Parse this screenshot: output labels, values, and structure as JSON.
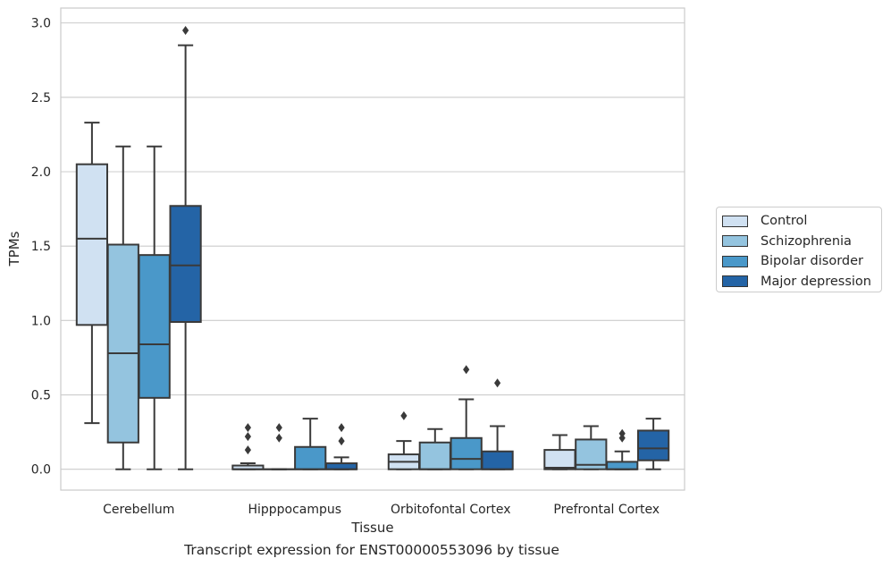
{
  "chart_data": {
    "type": "boxplot",
    "xlabel": "Tissue",
    "ylabel": "TPMs",
    "caption": "Transcript expression for ENST00000553096 by tissue",
    "ylim": [
      -0.14,
      3.1
    ],
    "yticks": [
      "0.0",
      "0.5",
      "1.0",
      "1.5",
      "2.0",
      "2.5",
      "3.0"
    ],
    "grid": "horizontal",
    "legend_position": "right",
    "categories": [
      "Cerebellum",
      "Hipppocampus",
      "Orbitofontal Cortex",
      "Prefrontal Cortex"
    ],
    "series": [
      {
        "name": "Control",
        "color": "#d0e1f2",
        "boxes": [
          {
            "whislo": 0.31,
            "q1": 0.97,
            "med": 1.55,
            "q3": 2.05,
            "whishi": 2.33,
            "fliers": []
          },
          {
            "whislo": 0.0,
            "q1": 0.0,
            "med": 0.0,
            "q3": 0.025,
            "whishi": 0.04,
            "fliers": [
              0.13,
              0.22,
              0.28
            ]
          },
          {
            "whislo": 0.0,
            "q1": 0.0,
            "med": 0.05,
            "q3": 0.1,
            "whishi": 0.19,
            "fliers": [
              0.36
            ]
          },
          {
            "whislo": 0.0,
            "q1": 0.0,
            "med": 0.01,
            "q3": 0.13,
            "whishi": 0.23,
            "fliers": []
          }
        ]
      },
      {
        "name": "Schizophrenia",
        "color": "#94c4df",
        "boxes": [
          {
            "whislo": 0.0,
            "q1": 0.18,
            "med": 0.78,
            "q3": 1.51,
            "whishi": 2.17,
            "fliers": []
          },
          {
            "whislo": 0.0,
            "q1": 0.0,
            "med": 0.0,
            "q3": 0.0,
            "whishi": 0.0,
            "fliers": [
              0.21,
              0.28
            ]
          },
          {
            "whislo": 0.0,
            "q1": 0.0,
            "med": 0.0,
            "q3": 0.18,
            "whishi": 0.27,
            "fliers": []
          },
          {
            "whislo": 0.0,
            "q1": 0.0,
            "med": 0.03,
            "q3": 0.2,
            "whishi": 0.29,
            "fliers": []
          }
        ]
      },
      {
        "name": "Bipolar disorder",
        "color": "#4a98c9",
        "boxes": [
          {
            "whislo": 0.0,
            "q1": 0.48,
            "med": 0.84,
            "q3": 1.44,
            "whishi": 2.17,
            "fliers": []
          },
          {
            "whislo": 0.0,
            "q1": 0.0,
            "med": 0.0,
            "q3": 0.15,
            "whishi": 0.34,
            "fliers": []
          },
          {
            "whislo": 0.0,
            "q1": 0.0,
            "med": 0.07,
            "q3": 0.21,
            "whishi": 0.47,
            "fliers": [
              0.67
            ]
          },
          {
            "whislo": 0.0,
            "q1": 0.0,
            "med": 0.0,
            "q3": 0.05,
            "whishi": 0.12,
            "fliers": [
              0.21,
              0.24
            ]
          }
        ]
      },
      {
        "name": "Major depression",
        "color": "#2464a6",
        "boxes": [
          {
            "whislo": 0.0,
            "q1": 0.99,
            "med": 1.37,
            "q3": 1.77,
            "whishi": 2.85,
            "fliers": [
              2.95
            ]
          },
          {
            "whislo": 0.0,
            "q1": 0.0,
            "med": 0.0,
            "q3": 0.04,
            "whishi": 0.08,
            "fliers": [
              0.19,
              0.28
            ]
          },
          {
            "whislo": 0.0,
            "q1": 0.0,
            "med": 0.0,
            "q3": 0.12,
            "whishi": 0.29,
            "fliers": [
              0.58
            ]
          },
          {
            "whislo": 0.0,
            "q1": 0.06,
            "med": 0.14,
            "q3": 0.26,
            "whishi": 0.34,
            "fliers": []
          }
        ]
      }
    ]
  }
}
